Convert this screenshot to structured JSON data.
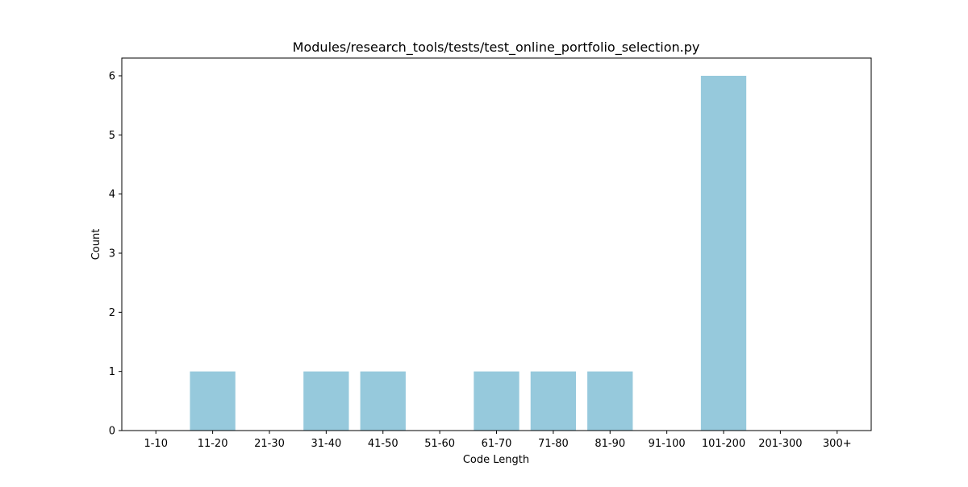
{
  "chart_data": {
    "type": "bar",
    "title": "Modules/research_tools/tests/test_online_portfolio_selection.py",
    "xlabel": "Code Length",
    "ylabel": "Count",
    "categories": [
      "1-10",
      "11-20",
      "21-30",
      "31-40",
      "41-50",
      "51-60",
      "61-70",
      "71-80",
      "81-90",
      "91-100",
      "101-200",
      "201-300",
      "300+"
    ],
    "values": [
      0,
      1,
      0,
      1,
      1,
      0,
      1,
      1,
      1,
      0,
      6,
      0,
      0
    ],
    "ylim": [
      0,
      6.3
    ],
    "yticks": [
      0,
      1,
      2,
      3,
      4,
      5,
      6
    ],
    "grid": false,
    "legend": "none",
    "bar_color": "#96c9dc"
  }
}
